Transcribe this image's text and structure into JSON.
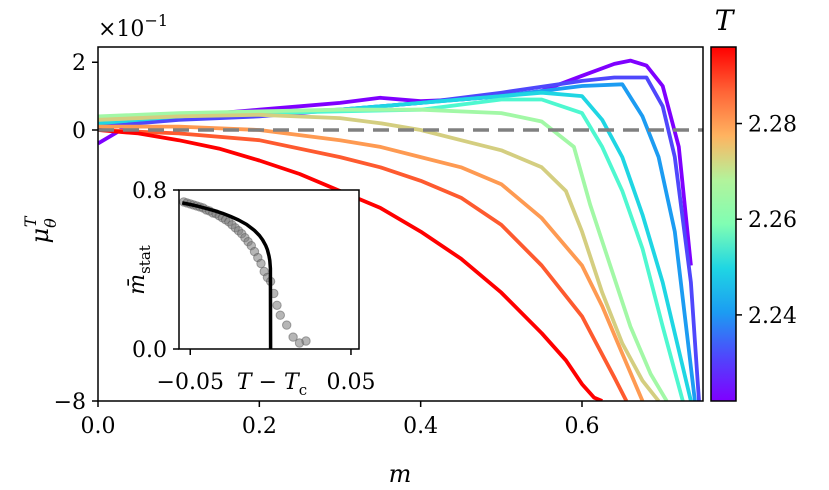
{
  "chart_data": [
    {
      "type": "line",
      "title": "",
      "xlabel": "m",
      "ylabel": "μ_θ^T",
      "ylabel_main": "μ",
      "ylabel_sub": "θ",
      "ylabel_sup": "T",
      "scale_factor_label": "×10",
      "scale_factor_exp": "−1",
      "xlim": [
        0.0,
        0.75
      ],
      "ylim": [
        -8,
        2.45
      ],
      "x_ticks": [
        0.0,
        0.2,
        0.4,
        0.6
      ],
      "x_tick_labels": [
        "0.0",
        "0.2",
        "0.4",
        "0.6"
      ],
      "y_ticks": [
        -8,
        0,
        2
      ],
      "y_tick_labels": [
        "−8",
        "0",
        "2"
      ],
      "reference_line": {
        "y": 0,
        "style": "dashed",
        "color": "#808080"
      },
      "colorbar": {
        "label": "T",
        "range": [
          2.222,
          2.296
        ],
        "ticks": [
          2.24,
          2.26,
          2.28
        ],
        "tick_labels": [
          "2.24",
          "2.26",
          "2.28"
        ],
        "colormap": "rainbow"
      },
      "series": [
        {
          "name": "T=2.225",
          "T": 2.225,
          "color": "#7f00ff",
          "x": [
            0.0,
            0.05,
            0.1,
            0.15,
            0.2,
            0.25,
            0.3,
            0.35,
            0.4,
            0.45,
            0.5,
            0.55,
            0.6,
            0.64,
            0.66,
            0.68,
            0.7,
            0.72,
            0.735
          ],
          "y": [
            -0.4,
            0.3,
            0.4,
            0.5,
            0.6,
            0.7,
            0.8,
            0.95,
            0.85,
            0.9,
            1.0,
            1.15,
            1.6,
            1.95,
            2.05,
            1.9,
            1.3,
            -0.5,
            -4.0
          ]
        },
        {
          "name": "T=2.233",
          "T": 2.233,
          "color": "#4f47fc",
          "x": [
            0.0,
            0.1,
            0.2,
            0.3,
            0.4,
            0.5,
            0.6,
            0.64,
            0.68,
            0.7,
            0.715,
            0.735,
            0.745
          ],
          "y": [
            0.1,
            0.3,
            0.4,
            0.6,
            0.8,
            1.1,
            1.45,
            1.55,
            1.55,
            0.7,
            -0.8,
            -4.5,
            -8.0
          ]
        },
        {
          "name": "T=2.241",
          "T": 2.241,
          "color": "#1c9cf2",
          "x": [
            0.0,
            0.1,
            0.2,
            0.3,
            0.4,
            0.5,
            0.6,
            0.65,
            0.675,
            0.695,
            0.715,
            0.73,
            0.74
          ],
          "y": [
            0.2,
            0.4,
            0.5,
            0.6,
            0.8,
            1.0,
            1.3,
            1.35,
            0.4,
            -0.8,
            -3.0,
            -6.0,
            -8.0
          ]
        },
        {
          "name": "T=2.249",
          "T": 2.249,
          "color": "#1fd6e3",
          "x": [
            0.0,
            0.1,
            0.2,
            0.3,
            0.4,
            0.5,
            0.55,
            0.6,
            0.625,
            0.65,
            0.675,
            0.7,
            0.72,
            0.735
          ],
          "y": [
            0.2,
            0.4,
            0.5,
            0.6,
            0.8,
            1.0,
            1.1,
            1.0,
            0.3,
            -0.8,
            -2.5,
            -4.5,
            -6.5,
            -8.0
          ]
        },
        {
          "name": "T=2.257",
          "T": 2.257,
          "color": "#4ef8d0",
          "x": [
            0.0,
            0.1,
            0.2,
            0.3,
            0.4,
            0.5,
            0.55,
            0.6,
            0.625,
            0.65,
            0.675,
            0.7,
            0.725
          ],
          "y": [
            0.3,
            0.4,
            0.5,
            0.55,
            0.6,
            0.9,
            0.9,
            0.5,
            -0.5,
            -1.8,
            -3.5,
            -5.8,
            -8.0
          ]
        },
        {
          "name": "T=2.265",
          "T": 2.265,
          "color": "#a2f8a6",
          "x": [
            0.0,
            0.1,
            0.2,
            0.3,
            0.4,
            0.5,
            0.55,
            0.59,
            0.61,
            0.635,
            0.66,
            0.685,
            0.705
          ],
          "y": [
            0.4,
            0.5,
            0.55,
            0.6,
            0.6,
            0.5,
            0.25,
            -0.5,
            -2.2,
            -4.0,
            -5.8,
            -7.2,
            -8.0
          ]
        },
        {
          "name": "T=2.273",
          "T": 2.273,
          "color": "#d4ce80",
          "x": [
            0.0,
            0.1,
            0.2,
            0.3,
            0.35,
            0.4,
            0.45,
            0.5,
            0.55,
            0.58,
            0.6,
            0.625,
            0.65,
            0.675,
            0.695
          ],
          "y": [
            0.3,
            0.4,
            0.45,
            0.35,
            0.2,
            0.0,
            -0.3,
            -0.6,
            -1.1,
            -1.8,
            -3.0,
            -4.8,
            -6.3,
            -7.4,
            -8.0
          ]
        },
        {
          "name": "T=2.281",
          "T": 2.281,
          "color": "#fe9a52",
          "x": [
            0.0,
            0.1,
            0.2,
            0.3,
            0.35,
            0.4,
            0.45,
            0.5,
            0.55,
            0.6,
            0.625,
            0.65,
            0.675
          ],
          "y": [
            0.1,
            0.1,
            0.0,
            -0.3,
            -0.5,
            -0.8,
            -1.1,
            -1.6,
            -2.6,
            -4.0,
            -5.2,
            -6.6,
            -8.0
          ]
        },
        {
          "name": "T=2.288",
          "T": 2.288,
          "color": "#fe5a2f",
          "x": [
            0.0,
            0.1,
            0.2,
            0.3,
            0.35,
            0.4,
            0.45,
            0.5,
            0.55,
            0.6,
            0.62,
            0.64,
            0.655
          ],
          "y": [
            0.0,
            -0.1,
            -0.3,
            -0.8,
            -1.1,
            -1.5,
            -2.0,
            -2.8,
            -4.0,
            -5.5,
            -6.4,
            -7.3,
            -8.0
          ]
        },
        {
          "name": "T=2.295",
          "T": 2.295,
          "color": "#ff0000",
          "x": [
            0.0,
            0.05,
            0.1,
            0.15,
            0.2,
            0.25,
            0.3,
            0.35,
            0.4,
            0.45,
            0.5,
            0.55,
            0.58,
            0.6,
            0.615,
            0.625
          ],
          "y": [
            0.0,
            -0.1,
            -0.3,
            -0.55,
            -0.9,
            -1.3,
            -1.8,
            -2.3,
            -3.0,
            -3.8,
            -4.8,
            -6.0,
            -6.8,
            -7.5,
            -7.9,
            -8.0
          ]
        }
      ]
    },
    {
      "type": "scatter",
      "inset": true,
      "title": "",
      "xlabel": "T − T_c",
      "xlabel_main": "T − T",
      "xlabel_sub": "c",
      "ylabel": "m̄_stat",
      "ylabel_main": "m̄",
      "ylabel_sub": "stat",
      "xlim": [
        -0.057,
        0.055
      ],
      "ylim": [
        0.0,
        0.8
      ],
      "x_ticks": [
        -0.05,
        0.05
      ],
      "x_tick_labels": [
        "−0.05",
        "0.05"
      ],
      "y_ticks": [
        0.0,
        0.8
      ],
      "y_tick_labels": [
        "0.0",
        "0.8"
      ],
      "points": {
        "x": [
          -0.054,
          -0.052,
          -0.05,
          -0.048,
          -0.046,
          -0.044,
          -0.042,
          -0.04,
          -0.038,
          -0.036,
          -0.034,
          -0.032,
          -0.03,
          -0.028,
          -0.026,
          -0.024,
          -0.022,
          -0.02,
          -0.018,
          -0.016,
          -0.014,
          -0.012,
          -0.01,
          -0.008,
          -0.006,
          -0.004,
          -0.002,
          0.0,
          0.002,
          0.004,
          0.006,
          0.01,
          0.014,
          0.018,
          0.022
        ],
        "y": [
          0.74,
          0.735,
          0.73,
          0.725,
          0.72,
          0.715,
          0.71,
          0.7,
          0.695,
          0.685,
          0.68,
          0.67,
          0.66,
          0.65,
          0.64,
          0.625,
          0.61,
          0.595,
          0.58,
          0.56,
          0.54,
          0.52,
          0.49,
          0.46,
          0.43,
          0.39,
          0.36,
          0.34,
          0.28,
          0.22,
          0.17,
          0.12,
          0.06,
          0.03,
          0.04
        ]
      },
      "fit_curve": {
        "x": [
          -0.055,
          -0.05,
          -0.045,
          -0.04,
          -0.035,
          -0.03,
          -0.025,
          -0.02,
          -0.015,
          -0.01,
          -0.007,
          -0.005,
          -0.003,
          -0.002,
          -0.001,
          -0.0005,
          -0.0001,
          0.0
        ],
        "y": [
          0.735,
          0.727,
          0.718,
          0.707,
          0.696,
          0.683,
          0.667,
          0.649,
          0.627,
          0.596,
          0.571,
          0.549,
          0.52,
          0.499,
          0.468,
          0.445,
          0.405,
          0.0
        ]
      }
    }
  ]
}
